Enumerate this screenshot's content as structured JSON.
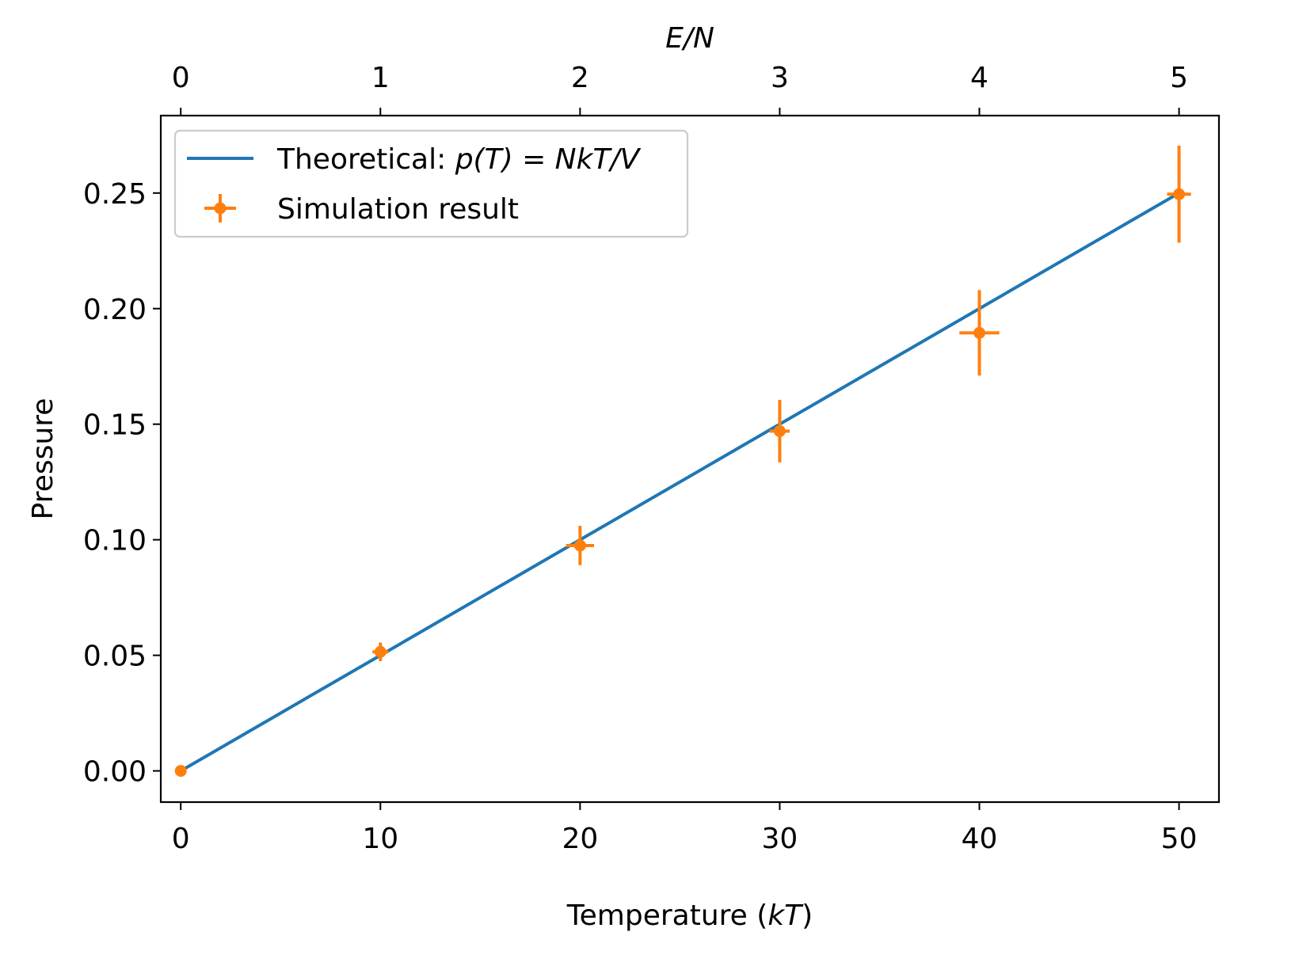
{
  "chart_data": {
    "type": "line",
    "xlabel": "Temperature (kT)",
    "xlabel_parts": {
      "prefix": "Temperature (",
      "italic": "kT",
      "suffix": ")"
    },
    "top_xlabel": "E/N",
    "ylabel": "Pressure",
    "xlim": [
      -1,
      52
    ],
    "ylim": [
      -0.0135,
      0.2835
    ],
    "x_ticks": [
      0,
      10,
      20,
      30,
      40,
      50
    ],
    "x_tick_labels": [
      "0",
      "10",
      "20",
      "30",
      "40",
      "50"
    ],
    "top_x_ticks": [
      0,
      1,
      2,
      3,
      4,
      5
    ],
    "top_x_tick_labels": [
      "0",
      "1",
      "2",
      "3",
      "4",
      "5"
    ],
    "y_ticks": [
      0,
      0.05,
      0.1,
      0.15,
      0.2,
      0.25
    ],
    "y_tick_labels": [
      "0.00",
      "0.05",
      "0.10",
      "0.15",
      "0.20",
      "0.25"
    ],
    "grid": false,
    "legend_position": "top-left",
    "legend": {
      "theory": "Theoretical: p(T) = NkT/V",
      "theory_parts": {
        "prefix": "Theoretical: ",
        "math": "p(T) = NkT/V"
      },
      "sim": "Simulation result"
    },
    "series": [
      {
        "name": "Theoretical: p(T) = NkT/V",
        "type": "line",
        "color": "#1f77b4",
        "x": [
          0,
          50
        ],
        "y": [
          0,
          0.25
        ]
      },
      {
        "name": "Simulation result",
        "type": "errorbar",
        "color": "#ff7f0e",
        "x": [
          0,
          10,
          20,
          30,
          40,
          50
        ],
        "y": [
          0.0,
          0.0515,
          0.0975,
          0.147,
          0.1895,
          0.2495
        ],
        "xerr": [
          0.0,
          0.4,
          0.7,
          0.5,
          1.0,
          0.6
        ],
        "yerr": [
          0.0,
          0.004,
          0.0085,
          0.0135,
          0.0185,
          0.021
        ]
      }
    ]
  }
}
